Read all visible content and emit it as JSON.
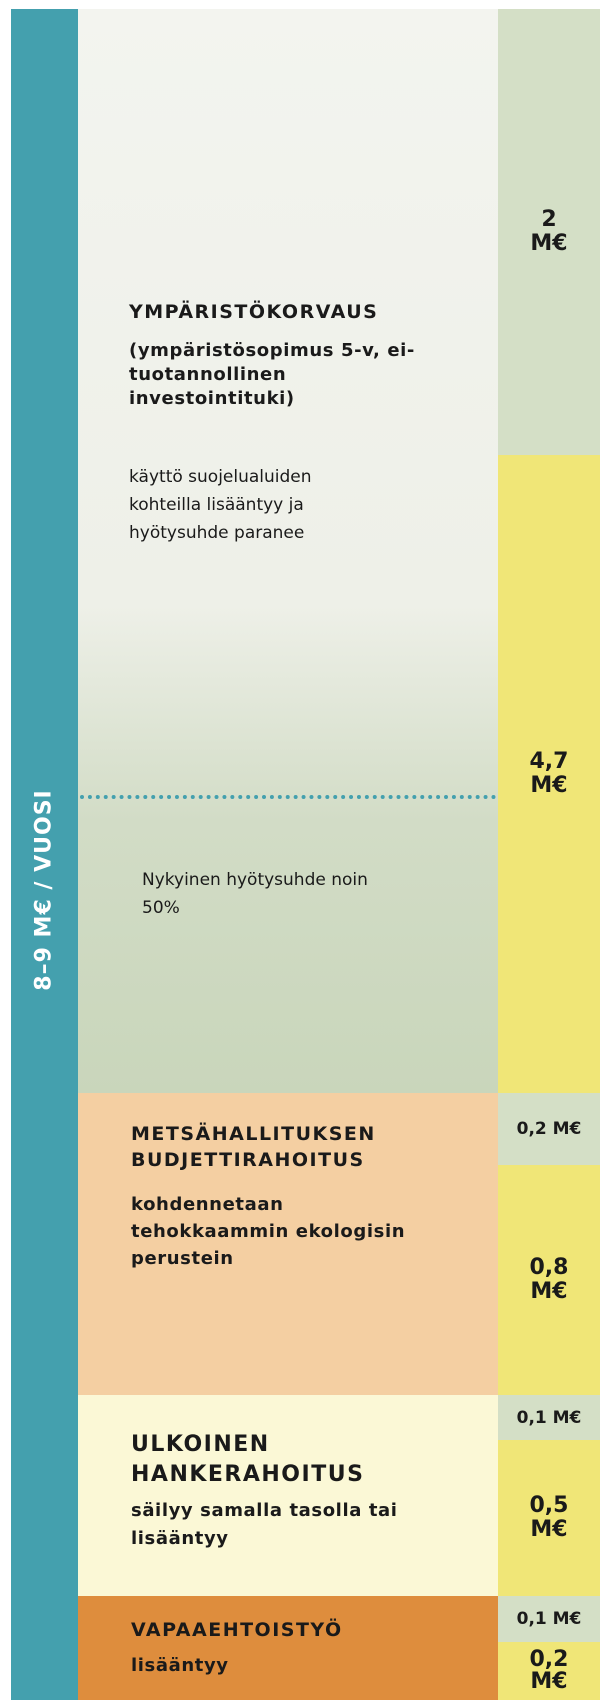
{
  "side_label": "8–9 M€ / VUOSI",
  "sections": [
    {
      "title": "YMPÄRISTÖKORVAUS",
      "subtitle": "(ympäristösopimus 5-v, ei-tuotannollinen investointituki)",
      "description": "käyttö suojelualuiden kohteilla lisääntyy ja hyötysuhde paranee",
      "note": "Nykyinen hyötysuhde noin 50%",
      "amounts": [
        "2 M€",
        "4,7 M€"
      ]
    },
    {
      "title": "METSÄHALLITUKSEN BUDJETTIRAHOITUS",
      "subtitle": "kohdennetaan tehokkaammin ekologisin perustein",
      "amounts": [
        "0,2 M€",
        "0,8 M€"
      ]
    },
    {
      "title": "ULKOINEN HANKERAHOITUS",
      "subtitle": "säilyy samalla tasolla tai lisääntyy",
      "amounts": [
        "0,1 M€",
        "0,5 M€"
      ]
    },
    {
      "title": "VAPAAEHTOISTYÖ",
      "subtitle": "lisääntyy",
      "amounts": [
        "0,1 M€",
        "0,2 M€"
      ]
    }
  ]
}
